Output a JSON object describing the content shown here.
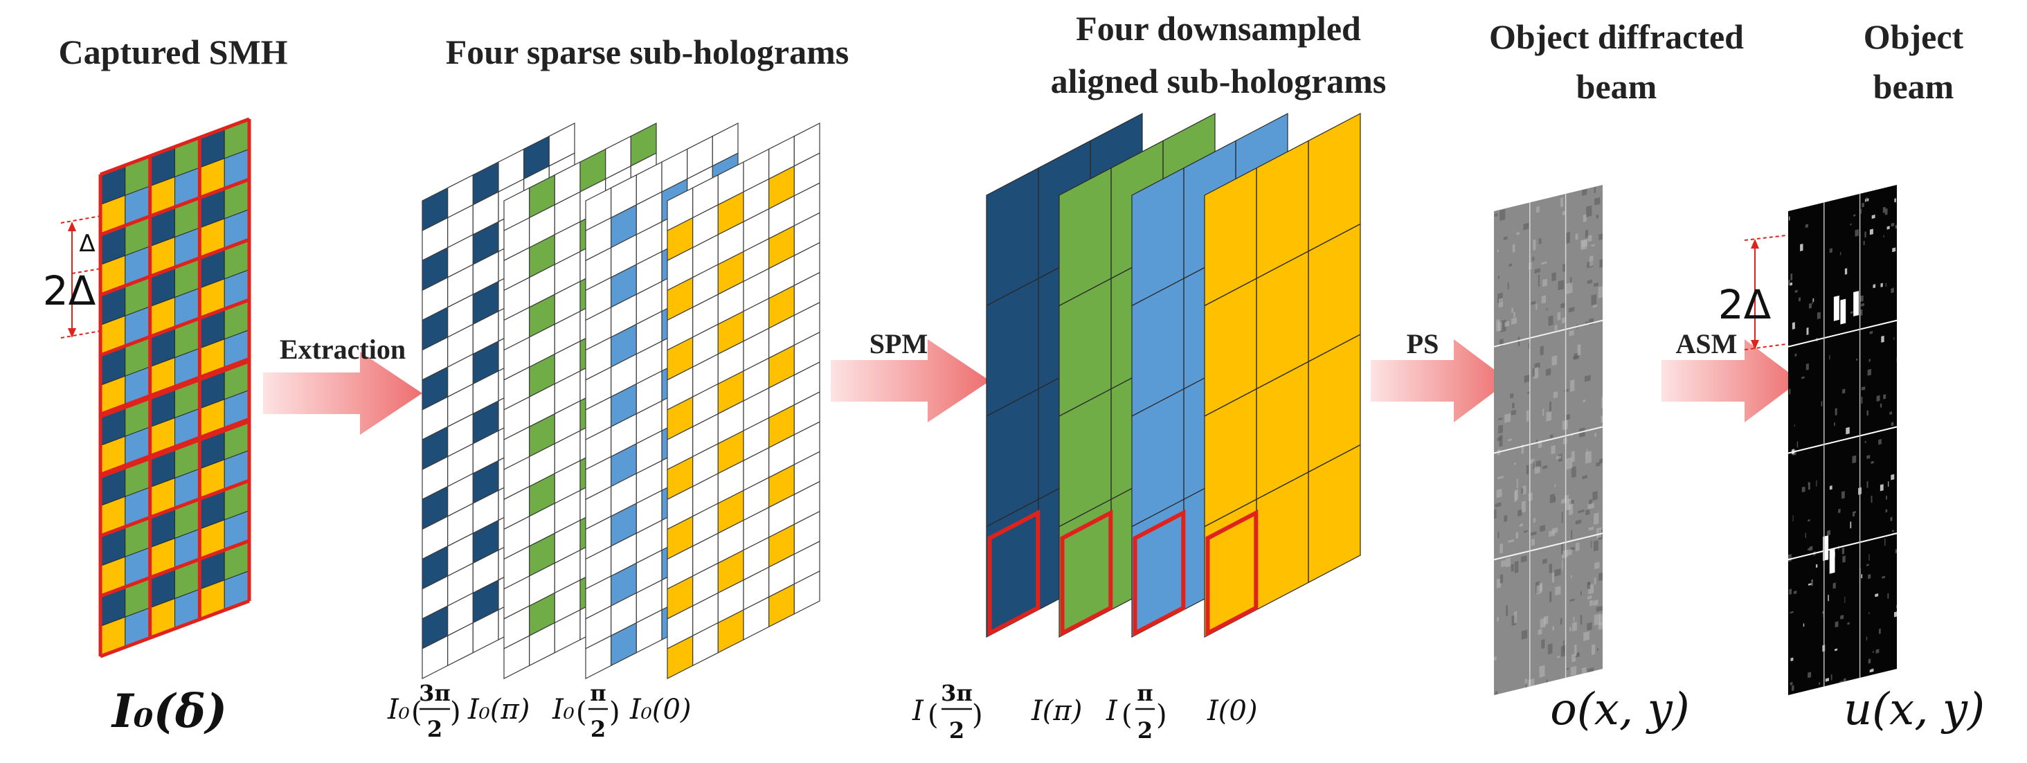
{
  "titles": {
    "captured": "Captured SMH",
    "sparse": "Four sparse sub-holograms",
    "aligned_1": "Four downsampled",
    "aligned_2": "aligned sub-holograms",
    "diffracted_1": "Object diffracted",
    "diffracted_2": "beam",
    "object_1": "Object",
    "object_2": "beam"
  },
  "arrows": {
    "extraction": "Extraction",
    "spm": "SPM",
    "ps": "PS",
    "asm": "ASM"
  },
  "labels": {
    "i0_delta": "I₀(δ)",
    "sparse_i0": "I₀",
    "sparse_pi": "I₀(π)",
    "sparse_zero": "I₀(0)",
    "aligned_i": "I",
    "aligned_pi": "I(π)",
    "aligned_zero": "I(0)",
    "frac_3pi": "3π",
    "frac_pi": "π",
    "frac_den": "2",
    "o_xy": "o(x, y)",
    "u_xy": "u(x, y)",
    "delta": "Δ",
    "two_delta": "2Δ"
  },
  "colors": {
    "dark_blue": "#1e4d78",
    "green": "#70ad47",
    "light_blue": "#5b9bd5",
    "yellow": "#ffc000",
    "red": "#e0221c"
  }
}
